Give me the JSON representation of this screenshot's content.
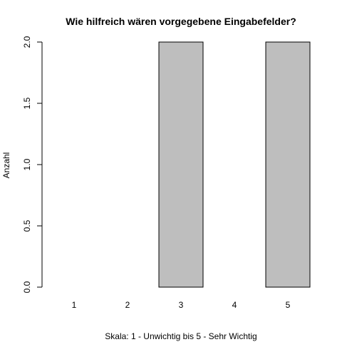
{
  "chart_data": {
    "type": "bar",
    "title": "Wie hilfreich wären vorgegebene Eingabefelder?",
    "xlabel": "Skala: 1 - Unwichtig bis 5 - Sehr Wichtig",
    "ylabel": "Anzahl",
    "categories": [
      "1",
      "2",
      "3",
      "4",
      "5"
    ],
    "values": [
      0,
      0,
      2,
      0,
      2
    ],
    "ylim": [
      0,
      2
    ],
    "yticks": [
      "0.0",
      "0.5",
      "1.0",
      "1.5",
      "2.0"
    ],
    "bar_color": "#bebebe",
    "grid": false,
    "legend": "none"
  }
}
